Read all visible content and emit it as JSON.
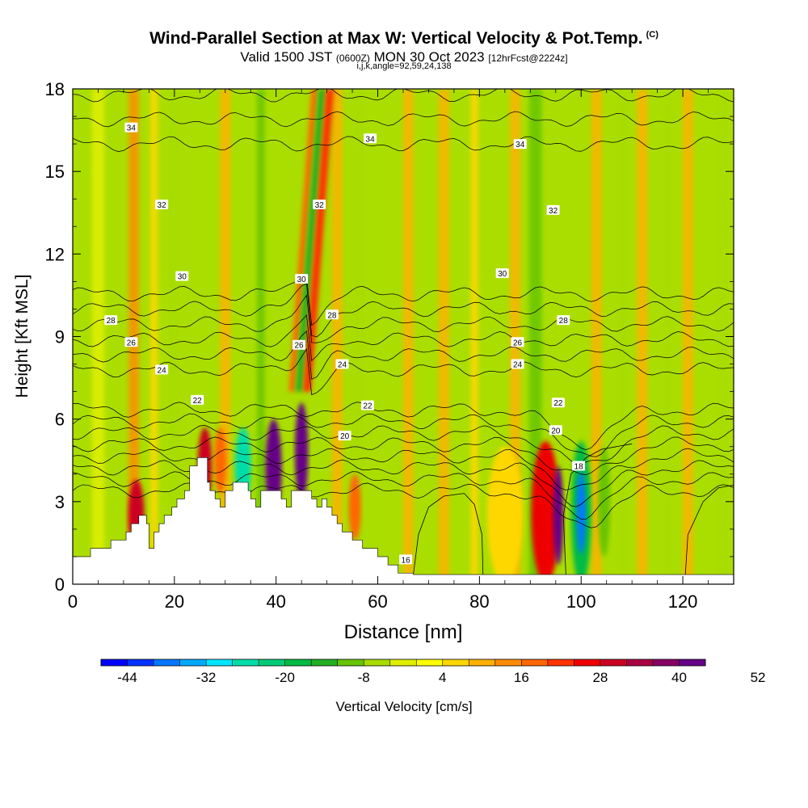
{
  "chart_data": {
    "type": "heatmap",
    "title": "Wind-Parallel Section at Max W: Vertical Velocity & Pot.Temp.",
    "title_tag": "(C)",
    "subtitle_main": "Valid 1500 JST",
    "subtitle_z": "(0600Z)",
    "subtitle_date": "MON 30 Oct 2023",
    "subtitle_fcst": "[12hrFcst@2224z]",
    "subtitle2": "i,j,k,angle=92,59,24,138",
    "xlabel": "Distance [nm]",
    "ylabel": "Height [Kft MSL]",
    "xlim": [
      0,
      130
    ],
    "ylim": [
      0,
      18
    ],
    "xticks": [
      "0",
      "20",
      "40",
      "60",
      "80",
      "100",
      "120"
    ],
    "yticks": [
      "0",
      "3",
      "6",
      "9",
      "12",
      "15",
      "18"
    ],
    "colorbar": {
      "label": "Vertical Velocity [cm/s]",
      "tick_labels": [
        "-44",
        "-32",
        "-20",
        "-8",
        "4",
        "16",
        "28",
        "40",
        "52"
      ],
      "colors": [
        "#0000ff",
        "#0033ff",
        "#0077ff",
        "#00aaff",
        "#00e6ff",
        "#00ddaa",
        "#00cc77",
        "#00bb44",
        "#22b022",
        "#66c400",
        "#a8dc00",
        "#e0ee00",
        "#ffff00",
        "#ffd700",
        "#ffb000",
        "#ff8c00",
        "#ff6600",
        "#ff3300",
        "#ee0000",
        "#cc0022",
        "#aa0044",
        "#880066",
        "#660088"
      ]
    },
    "background_color": "#aade00",
    "columns": [
      {
        "x": 5,
        "w": 2.5,
        "v": -4
      },
      {
        "x": 12,
        "w": 2,
        "v": 12
      },
      {
        "x": 16,
        "w": 1.5,
        "v": 4
      },
      {
        "x": 20,
        "w": 2,
        "v": -6
      },
      {
        "x": 30,
        "w": 2,
        "v": 8
      },
      {
        "x": 37,
        "w": 1.5,
        "v": -10
      },
      {
        "x": 52,
        "w": 2,
        "v": 8
      },
      {
        "x": 56,
        "w": 2.5,
        "v": -6
      },
      {
        "x": 66,
        "w": 2,
        "v": 8
      },
      {
        "x": 73,
        "w": 2,
        "v": 8
      },
      {
        "x": 79,
        "w": 1.5,
        "v": 4
      },
      {
        "x": 87,
        "w": 2,
        "v": 8
      },
      {
        "x": 91,
        "w": 2.5,
        "v": -10
      },
      {
        "x": 103,
        "w": 2,
        "v": 8
      },
      {
        "x": 108,
        "w": 2,
        "v": -6
      },
      {
        "x": 112,
        "w": 2,
        "v": 8
      },
      {
        "x": 117,
        "w": 1.5,
        "v": -8
      },
      {
        "x": 121,
        "w": 2,
        "v": 8
      },
      {
        "x": 128,
        "w": 2,
        "v": -8
      }
    ],
    "cells": [
      {
        "x": 12.5,
        "y": 2.5,
        "rx": 1.6,
        "ry": 1.3,
        "v": 28
      },
      {
        "x": 26,
        "y": 4.3,
        "rx": 1.4,
        "ry": 1.4,
        "v": 28
      },
      {
        "x": 29,
        "y": 4.5,
        "rx": 1.2,
        "ry": 1.2,
        "v": 16
      },
      {
        "x": 33.5,
        "y": 4.3,
        "rx": 1.6,
        "ry": 1.4,
        "v": -26
      },
      {
        "x": 39.5,
        "y": 4.2,
        "rx": 1.6,
        "ry": 1.8,
        "v": 40
      },
      {
        "x": 45,
        "y": 4.8,
        "rx": 1.3,
        "ry": 1.8,
        "v": 40
      },
      {
        "x": 55.5,
        "y": 2.8,
        "rx": 1.2,
        "ry": 1.2,
        "v": 16
      },
      {
        "x": 85,
        "y": 2.5,
        "rx": 3.5,
        "ry": 2.5,
        "v": 4
      },
      {
        "x": 93,
        "y": 2.6,
        "rx": 2.8,
        "ry": 2.6,
        "v": 24
      },
      {
        "x": 95.5,
        "y": 2.5,
        "rx": 1.0,
        "ry": 1.8,
        "v": 40
      },
      {
        "x": 100,
        "y": 2.6,
        "rx": 2.0,
        "ry": 2.6,
        "v": -20
      },
      {
        "x": 100,
        "y": 2.6,
        "rx": 0.9,
        "ry": 1.5,
        "v": -38
      },
      {
        "x": 104.5,
        "y": 3.0,
        "rx": 1.2,
        "ry": 2.0,
        "v": -10
      }
    ],
    "plume": {
      "x0": 44.5,
      "y0": 7.0,
      "x1": 49.0,
      "y1": 18.0,
      "bands": [
        {
          "dx": -1.4,
          "w": 1.2,
          "v": 16
        },
        {
          "dx": 0,
          "w": 1.3,
          "v": -14
        },
        {
          "dx": 1.6,
          "w": 1.6,
          "v": 22
        }
      ]
    },
    "theta_labels": [
      {
        "t": "34",
        "x": 11.5,
        "y": 16.6
      },
      {
        "t": "34",
        "x": 58.5,
        "y": 16.2
      },
      {
        "t": "34",
        "x": 88,
        "y": 16.0
      },
      {
        "t": "32",
        "x": 17.5,
        "y": 13.8
      },
      {
        "t": "32",
        "x": 48.5,
        "y": 13.8
      },
      {
        "t": "32",
        "x": 94.5,
        "y": 13.6
      },
      {
        "t": "30",
        "x": 21.5,
        "y": 11.2
      },
      {
        "t": "30",
        "x": 45,
        "y": 11.1
      },
      {
        "t": "30",
        "x": 84.5,
        "y": 11.3
      },
      {
        "t": "28",
        "x": 7.5,
        "y": 9.6
      },
      {
        "t": "28",
        "x": 51,
        "y": 9.8
      },
      {
        "t": "28",
        "x": 96.5,
        "y": 9.6
      },
      {
        "t": "26",
        "x": 11.5,
        "y": 8.8
      },
      {
        "t": "26",
        "x": 44.5,
        "y": 8.7
      },
      {
        "t": "26",
        "x": 87.5,
        "y": 8.8
      },
      {
        "t": "24",
        "x": 17.5,
        "y": 7.8
      },
      {
        "t": "24",
        "x": 53,
        "y": 8.0
      },
      {
        "t": "24",
        "x": 87.5,
        "y": 8.0
      },
      {
        "t": "22",
        "x": 24.5,
        "y": 6.7
      },
      {
        "t": "22",
        "x": 58,
        "y": 6.5
      },
      {
        "t": "22",
        "x": 95.5,
        "y": 6.6
      },
      {
        "t": "20",
        "x": 53.5,
        "y": 5.4
      },
      {
        "t": "20",
        "x": 95,
        "y": 5.6
      },
      {
        "t": "18",
        "x": 99.5,
        "y": 4.3
      },
      {
        "t": "16",
        "x": 65.5,
        "y": 0.9
      }
    ],
    "terrain_xy": [
      [
        0,
        0
      ],
      [
        0,
        1.0
      ],
      [
        3.5,
        1.0
      ],
      [
        3.5,
        1.3
      ],
      [
        7.5,
        1.3
      ],
      [
        7.5,
        1.6
      ],
      [
        10.5,
        1.6
      ],
      [
        10.5,
        1.9
      ],
      [
        11.5,
        1.9
      ],
      [
        11.5,
        2.2
      ],
      [
        13,
        2.2
      ],
      [
        13,
        2.5
      ],
      [
        14.5,
        2.5
      ],
      [
        14.5,
        2.2
      ],
      [
        15,
        2.2
      ],
      [
        15,
        1.3
      ],
      [
        16,
        1.3
      ],
      [
        16,
        1.9
      ],
      [
        17,
        1.9
      ],
      [
        17,
        2.2
      ],
      [
        18,
        2.2
      ],
      [
        18,
        2.5
      ],
      [
        19.5,
        2.5
      ],
      [
        19.5,
        2.8
      ],
      [
        20.5,
        2.8
      ],
      [
        20.5,
        3.1
      ],
      [
        22,
        3.1
      ],
      [
        22,
        3.4
      ],
      [
        23,
        3.4
      ],
      [
        23,
        4.3
      ],
      [
        24.5,
        4.3
      ],
      [
        24.5,
        4.6
      ],
      [
        26.5,
        4.6
      ],
      [
        26.5,
        3.7
      ],
      [
        27,
        3.7
      ],
      [
        27,
        3.4
      ],
      [
        28,
        3.4
      ],
      [
        28,
        3.1
      ],
      [
        29,
        3.1
      ],
      [
        29,
        2.8
      ],
      [
        30,
        2.8
      ],
      [
        30,
        3.4
      ],
      [
        31.5,
        3.4
      ],
      [
        31.5,
        3.7
      ],
      [
        34.5,
        3.7
      ],
      [
        34.5,
        3.4
      ],
      [
        35,
        3.4
      ],
      [
        35,
        3.1
      ],
      [
        36,
        3.1
      ],
      [
        36,
        2.8
      ],
      [
        37,
        2.8
      ],
      [
        37,
        3.4
      ],
      [
        41,
        3.4
      ],
      [
        41,
        3.1
      ],
      [
        42,
        3.1
      ],
      [
        42,
        2.8
      ],
      [
        43,
        2.8
      ],
      [
        43,
        3.4
      ],
      [
        47,
        3.4
      ],
      [
        47,
        3.1
      ],
      [
        48,
        3.1
      ],
      [
        48,
        2.8
      ],
      [
        49,
        2.8
      ],
      [
        49,
        3.1
      ],
      [
        50,
        3.1
      ],
      [
        50,
        2.8
      ],
      [
        51,
        2.8
      ],
      [
        51,
        2.5
      ],
      [
        52,
        2.5
      ],
      [
        52,
        2.2
      ],
      [
        53,
        2.2
      ],
      [
        53,
        1.9
      ],
      [
        55,
        1.9
      ],
      [
        55,
        1.6
      ],
      [
        57,
        1.6
      ],
      [
        57,
        1.3
      ],
      [
        60,
        1.3
      ],
      [
        60,
        1.0
      ],
      [
        62,
        1.0
      ],
      [
        62,
        0.7
      ],
      [
        64,
        0.7
      ],
      [
        64,
        0.4
      ],
      [
        67,
        0.4
      ],
      [
        67,
        0.35
      ],
      [
        130,
        0.35
      ],
      [
        130,
        0
      ]
    ],
    "w_contours": [
      {
        "pts": [
          [
            67,
            0.35
          ],
          [
            68,
            1.8
          ],
          [
            70,
            2.8
          ],
          [
            73,
            3.2
          ],
          [
            77,
            3.3
          ],
          [
            79,
            2.9
          ],
          [
            80.5,
            1.8
          ],
          [
            80.7,
            0.35
          ]
        ]
      },
      {
        "pts": [
          [
            120.5,
            0.35
          ],
          [
            121,
            1.8
          ],
          [
            124,
            3.0
          ],
          [
            127,
            3.5
          ],
          [
            130,
            3.6
          ]
        ]
      },
      {
        "pts": [
          [
            97,
            0.35
          ],
          [
            96.5,
            2.5
          ],
          [
            98,
            4.0
          ],
          [
            101,
            4.6
          ],
          [
            104,
            4.9
          ],
          [
            110,
            5.1
          ]
        ]
      }
    ]
  }
}
